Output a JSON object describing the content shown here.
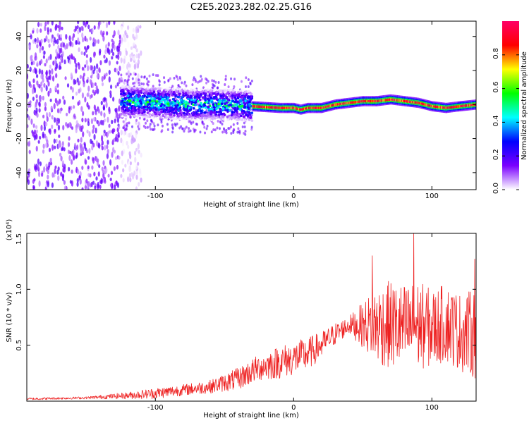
{
  "title": "C2E5.2023.282.02.25.G16",
  "chart_data": [
    {
      "type": "heatmap",
      "xlabel": "Height of straight line (km)",
      "ylabel": "Frequency (Hz)",
      "xlim": [
        -193,
        132
      ],
      "ylim": [
        -50,
        49
      ],
      "xticks": [
        -100,
        0,
        100
      ],
      "xtick_labels": [
        "-100",
        "0",
        "100"
      ],
      "yticks": [
        -40,
        -20,
        0,
        20,
        40
      ],
      "ytick_labels": [
        "-40",
        "-20",
        "0",
        "20",
        "40"
      ],
      "grid": false,
      "colorbar": {
        "label": "Normalized spectral amplitude",
        "range": [
          0,
          1
        ],
        "ticks": [
          0.0,
          0.2,
          0.4,
          0.6,
          0.8
        ],
        "tick_labels": [
          "0.0",
          "0.2",
          "0.4",
          "0.6",
          "0.8"
        ],
        "colormap": [
          "#ffffff",
          "#7a00ff",
          "#0000ff",
          "#00ffff",
          "#00ff00",
          "#ffff00",
          "#ff0000",
          "#ff0066"
        ]
      },
      "regions": [
        {
          "x": [
            -193,
            -125
          ],
          "description": "broadband noise",
          "amplitude": 0.15
        },
        {
          "x": [
            -125,
            -30
          ],
          "center_hz": 1,
          "half_width_hz": 9,
          "amplitude": 0.45
        },
        {
          "x": [
            -30,
            132
          ],
          "center_hz": 1,
          "half_width_hz": 3,
          "amplitude": 0.85
        }
      ],
      "ridge": {
        "x": [
          -125,
          -100,
          -75,
          -50,
          -30,
          -10,
          0,
          5,
          10,
          20,
          30,
          40,
          50,
          60,
          70,
          80,
          90,
          100,
          110,
          120,
          132
        ],
        "freq_hz": [
          2,
          1,
          0,
          0,
          -1,
          -2,
          -2,
          -3,
          -2,
          -2,
          0,
          1,
          2,
          2,
          3,
          2,
          1,
          -1,
          -2,
          -1,
          0
        ]
      }
    },
    {
      "type": "line",
      "xlabel": "Height of straight line (km)",
      "ylabel": "SNR (10 * v/v)",
      "y_multiplier_label": "(x10⁴)",
      "xlim": [
        -193,
        132
      ],
      "ylim": [
        0,
        1.5
      ],
      "xticks": [
        -100,
        0,
        100
      ],
      "xtick_labels": [
        "-100",
        "0",
        "100"
      ],
      "yticks": [
        0.5,
        1.0,
        1.5
      ],
      "ytick_labels": [
        "0.5",
        "1.0",
        "1.5"
      ],
      "grid": false,
      "color": "#ee2222",
      "envelope": {
        "x": [
          -193,
          -150,
          -120,
          -100,
          -80,
          -60,
          -40,
          -25,
          -10,
          0,
          10,
          20,
          30,
          40,
          50,
          60,
          70,
          80,
          90,
          100,
          110,
          120,
          132
        ],
        "mean": [
          0.02,
          0.03,
          0.05,
          0.07,
          0.1,
          0.13,
          0.2,
          0.3,
          0.35,
          0.38,
          0.42,
          0.5,
          0.6,
          0.68,
          0.68,
          0.68,
          0.68,
          0.65,
          0.68,
          0.65,
          0.7,
          0.62,
          0.6
        ],
        "amplitude": [
          0.01,
          0.01,
          0.03,
          0.05,
          0.05,
          0.06,
          0.1,
          0.12,
          0.15,
          0.15,
          0.15,
          0.12,
          0.1,
          0.08,
          0.2,
          0.35,
          0.4,
          0.4,
          0.4,
          0.35,
          0.35,
          0.35,
          0.4
        ]
      },
      "peaks": [
        {
          "x": 87,
          "y": 1.5
        },
        {
          "x": 57,
          "y": 1.3
        },
        {
          "x": 131,
          "y": 1.27
        }
      ]
    }
  ]
}
